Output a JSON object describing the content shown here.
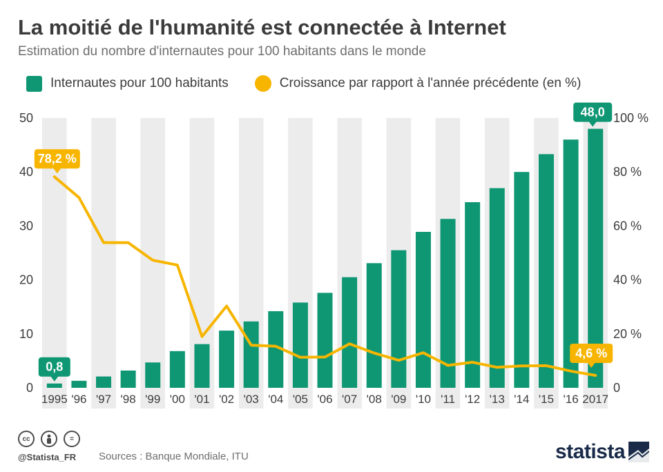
{
  "header": {
    "title": "La moitié de l'humanité est connectée à Internet",
    "subtitle": "Estimation du nombre d'internautes pour 100 habitants dans le monde"
  },
  "legend": {
    "bars_label": "Internautes pour 100 habitants",
    "line_label": "Croissance par rapport à l'année précédente (en %)"
  },
  "colors": {
    "bar": "#0f9774",
    "line": "#f7b500",
    "band": "#ececec",
    "axis_text": "#3b3b3b"
  },
  "chart_data": {
    "type": "bar",
    "title": "La moitié de l'humanité est connectée à Internet",
    "categories": [
      "1995",
      "'96",
      "'97",
      "'98",
      "'99",
      "'00",
      "'01",
      "'02",
      "'03",
      "'04",
      "'05",
      "'06",
      "'07",
      "'08",
      "'09",
      "'10",
      "'11",
      "'12",
      "'13",
      "'14",
      "'15",
      "'16",
      "2017"
    ],
    "series": [
      {
        "name": "Internautes pour 100 habitants",
        "type": "bar",
        "axis": "left",
        "values": [
          0.8,
          1.3,
          2.1,
          3.2,
          4.7,
          6.8,
          8.1,
          10.6,
          12.3,
          14.2,
          15.8,
          17.6,
          20.5,
          23.1,
          25.5,
          28.9,
          31.3,
          34.4,
          37.0,
          40.0,
          43.3,
          46.0,
          48.0
        ]
      },
      {
        "name": "Croissance par rapport à l'année précédente (en %)",
        "type": "line",
        "axis": "right",
        "values": [
          78.2,
          70.5,
          53.8,
          53.8,
          47.3,
          45.5,
          19.0,
          30.3,
          15.8,
          15.4,
          11.3,
          11.4,
          16.3,
          12.9,
          10.2,
          13.0,
          8.3,
          9.5,
          7.6,
          8.1,
          8.2,
          6.2,
          4.6
        ]
      }
    ],
    "ylim_left": [
      0,
      50
    ],
    "ylim_right": [
      0,
      100
    ],
    "yticks_left": [
      "0",
      "10",
      "20",
      "30",
      "40",
      "50"
    ],
    "yticks_right": [
      "0",
      "20 %",
      "40 %",
      "60 %",
      "80 %",
      "100 %"
    ],
    "annotations": {
      "first_bar": "0,8",
      "last_bar": "48,0",
      "first_line": "78,2 %",
      "last_line": "4,6 %"
    },
    "legend_position": "top-left",
    "grid": "alternating vertical bands"
  },
  "footer": {
    "cc_icon": "cc",
    "by_icon": "person-icon",
    "nd_icon": "=",
    "handle": "@Statista_FR",
    "sources": "Sources : Banque Mondiale, ITU",
    "brand": "statista"
  }
}
